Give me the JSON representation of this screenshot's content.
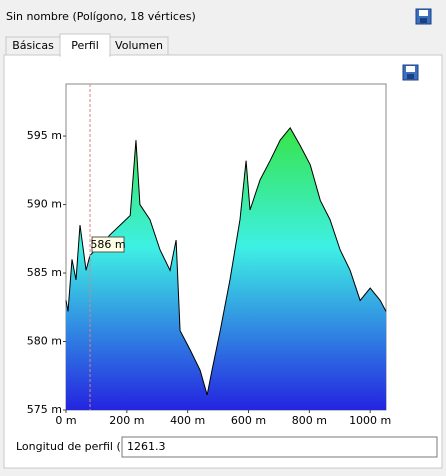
{
  "header": {
    "title": "Sin nombre (Polígono, 18 vértices)"
  },
  "tabs": [
    "Básicas",
    "Perfil",
    "Volumen"
  ],
  "chart_data": {
    "type": "area",
    "x": [
      0,
      6.6,
      19.7,
      32.9,
      46,
      66,
      79,
      112,
      145,
      178,
      211,
      230,
      243,
      276,
      309,
      342,
      362,
      375,
      408,
      441,
      464,
      480,
      507,
      539,
      572,
      592,
      605,
      638,
      671,
      704,
      737,
      770,
      803,
      836,
      868,
      901,
      934,
      967,
      1000,
      1033,
      1052
    ],
    "values": [
      583.0,
      582.2,
      586.0,
      584.5,
      588.5,
      585.2,
      586.3,
      587.0,
      587.8,
      588.5,
      589.2,
      594.7,
      590.0,
      588.9,
      586.7,
      585.2,
      587.4,
      580.8,
      579.4,
      577.9,
      576.1,
      577.9,
      580.8,
      584.5,
      588.9,
      593.2,
      589.6,
      591.8,
      593.2,
      594.7,
      595.6,
      594.3,
      592.9,
      590.3,
      588.9,
      586.7,
      585.2,
      583.0,
      583.9,
      583.0,
      582.2
    ],
    "colors": [
      "#2424e0",
      "#3ef0e4",
      "#34e010"
    ],
    "xlim": [
      0,
      1052
    ],
    "ylim": [
      575,
      598.8
    ],
    "xticks": [
      {
        "value": 0,
        "label": "0 m"
      },
      {
        "value": 200,
        "label": "200 m"
      },
      {
        "value": 400,
        "label": "400 m"
      },
      {
        "value": 600,
        "label": "600 m"
      },
      {
        "value": 800,
        "label": "800 m"
      },
      {
        "value": 1000,
        "label": "1000 m"
      }
    ],
    "yticks": [
      {
        "value": 575,
        "label": "575 m"
      },
      {
        "value": 580,
        "label": "580 m"
      },
      {
        "value": 585,
        "label": "585 m"
      },
      {
        "value": 590,
        "label": "590 m"
      },
      {
        "value": 595,
        "label": "595 m"
      }
    ],
    "cursor": {
      "x": 79,
      "label": "586 m"
    }
  },
  "footer": {
    "label": "Longitud de perfil (m):",
    "value": 1261.3
  }
}
